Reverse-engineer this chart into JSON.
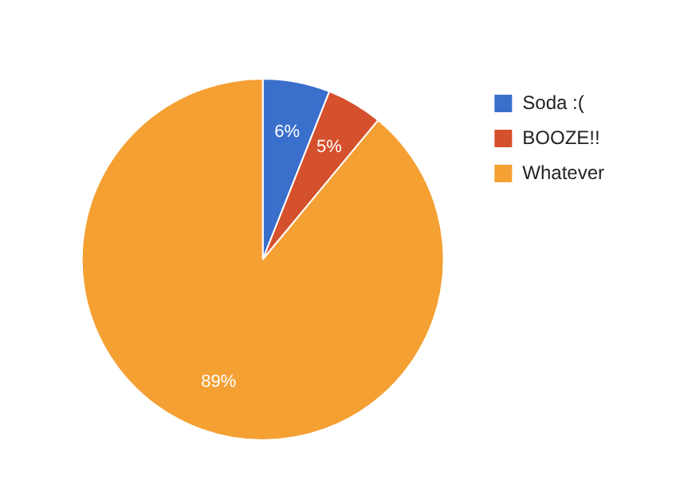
{
  "chart_data": {
    "type": "pie",
    "categories": [
      "Soda :(",
      "BOOZE!!",
      "Whatever"
    ],
    "values": [
      6,
      5,
      89
    ],
    "colors": [
      "#3b6fcc",
      "#d5502c",
      "#f5a033"
    ],
    "value_labels": [
      "6%",
      "5%",
      "89%"
    ],
    "legend": "top right"
  }
}
